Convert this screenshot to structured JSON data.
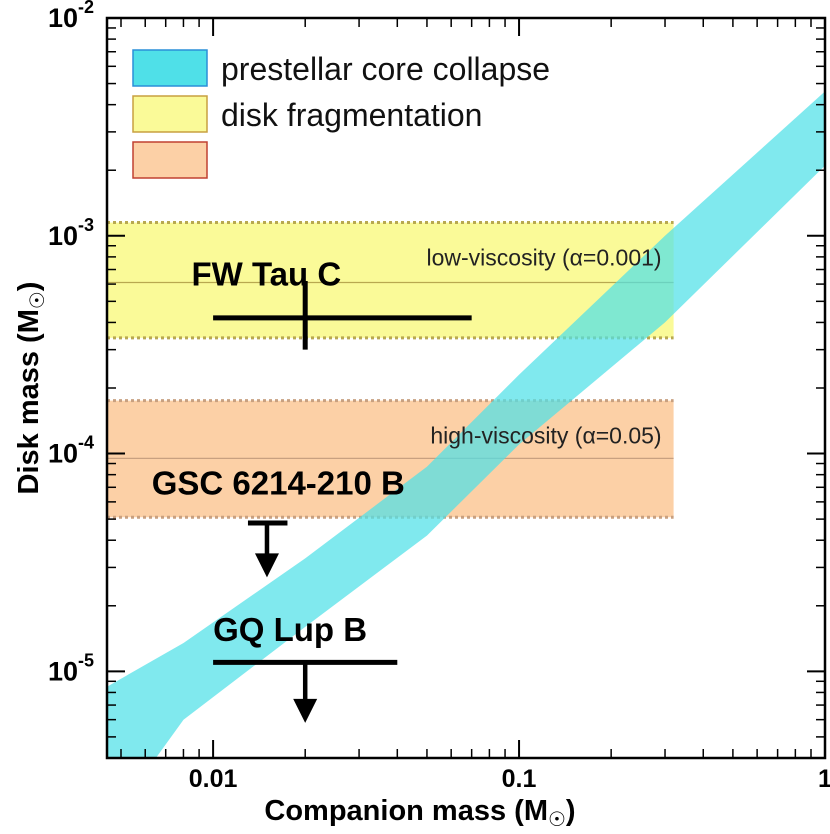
{
  "chart_data": {
    "type": "scatter",
    "title": "",
    "xlabel": "Companion mass (M",
    "ylabel": "Disk mass (M",
    "label_suffix": ")",
    "x_scale": "log",
    "y_scale": "log",
    "xlim": [
      0.0045,
      1.0
    ],
    "ylim": [
      4e-06,
      0.01
    ],
    "x_ticks": [
      {
        "value": 0.01,
        "label": "0.01"
      },
      {
        "value": 0.1,
        "label": "0.1"
      },
      {
        "value": 1,
        "label": "1"
      }
    ],
    "y_ticks": [
      {
        "value": 1e-05,
        "base": "10",
        "exp": "-5"
      },
      {
        "value": 0.0001,
        "base": "10",
        "exp": "-4"
      },
      {
        "value": 0.001,
        "base": "10",
        "exp": "-3"
      },
      {
        "value": 0.01,
        "base": "10",
        "exp": "-2"
      }
    ],
    "legend": {
      "position": "top-left",
      "entries": [
        {
          "label": "prestellar core collapse",
          "fill": "#4fe0e8",
          "stroke": "#2a8fd8"
        },
        {
          "label": "disk fragmentation",
          "fill": "#fafa98",
          "stroke": "#c8a040"
        },
        {
          "label": "",
          "fill": "#fcd0a6",
          "stroke": "#c04030"
        }
      ]
    },
    "bands": [
      {
        "name": "low-viscosity-band",
        "label": "low-viscosity (α=0.001)",
        "x_range": [
          0.0045,
          0.32
        ],
        "y_low": 0.00034,
        "y_high": 0.00115,
        "y_line": 0.00061,
        "fill": "#fafa98",
        "edge": "#b8a850"
      },
      {
        "name": "high-viscosity-band",
        "label": "high-viscosity (α=0.05)",
        "x_range": [
          0.0045,
          0.32
        ],
        "y_low": 5.1e-05,
        "y_high": 0.000175,
        "y_line": 9.5e-05,
        "fill": "#fcd0a6",
        "edge": "#c8a080"
      }
    ],
    "collapse_band": {
      "label": "prestellar core collapse",
      "fill": "#4fe0e8",
      "upper": [
        [
          0.0045,
          8.5e-06
        ],
        [
          0.008,
          1.35e-05
        ],
        [
          0.02,
          3.3e-05
        ],
        [
          0.05,
          8.7e-05
        ],
        [
          0.1,
          0.00023
        ],
        [
          0.3,
          0.001
        ],
        [
          1.0,
          0.0046
        ]
      ],
      "lower": [
        [
          1.0,
          0.0021
        ],
        [
          0.3,
          0.0004
        ],
        [
          0.1,
          0.00011
        ],
        [
          0.05,
          4.2e-05
        ],
        [
          0.02,
          1.6e-05
        ],
        [
          0.008,
          6e-06
        ],
        [
          0.0065,
          4e-06
        ],
        [
          0.0045,
          4e-06
        ]
      ]
    },
    "objects": [
      {
        "name": "FW Tau C",
        "x": 0.02,
        "y": 0.00042,
        "x_err": [
          0.01,
          0.07
        ],
        "y_err": [
          0.0003,
          0.00062
        ],
        "upper_limit": false,
        "label_x": 0.0085,
        "label_y": 0.00059
      },
      {
        "name": "GSC 6214-210 B",
        "x": 0.015,
        "y": 4.8e-05,
        "x_err": [
          0.013,
          0.0175
        ],
        "upper_limit": true,
        "arrow_to": 2.7e-05,
        "label_x": 0.0063,
        "label_y": 6.5e-05
      },
      {
        "name": "GQ Lup B",
        "x": 0.02,
        "y": 1.1e-05,
        "x_err": [
          0.01,
          0.04
        ],
        "upper_limit": true,
        "arrow_to": 5.8e-06,
        "label_x": 0.01,
        "label_y": 1.38e-05
      }
    ]
  }
}
